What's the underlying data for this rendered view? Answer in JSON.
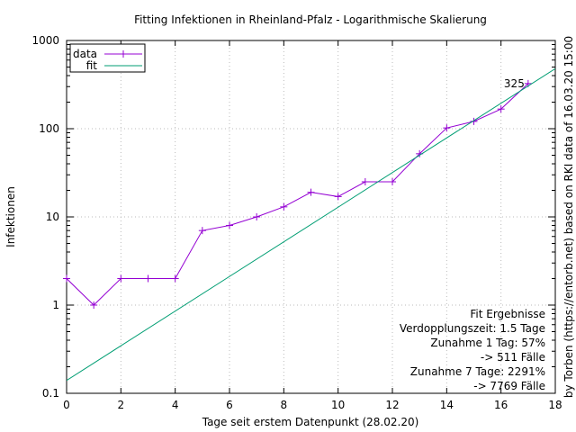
{
  "chart_data": {
    "type": "line",
    "title": "Fitting Infektionen in Rheinland-Pfalz - Logarithmische Skalierung",
    "xlabel": "Tage seit erstem Datenpunkt (28.02.20)",
    "ylabel": "Infektionen",
    "side_label": "by Torben (https://entorb.net) based on RKI data of 16.03.20 15:00",
    "xlim": [
      0,
      18
    ],
    "ylim": [
      0.1,
      1000
    ],
    "yscale": "log",
    "grid": true,
    "legend_position": "top-left",
    "x_ticks": [
      {
        "value": 0,
        "label": "0"
      },
      {
        "value": 2,
        "label": "2"
      },
      {
        "value": 4,
        "label": "4"
      },
      {
        "value": 6,
        "label": "6"
      },
      {
        "value": 8,
        "label": "8"
      },
      {
        "value": 10,
        "label": "10"
      },
      {
        "value": 12,
        "label": "12"
      },
      {
        "value": 14,
        "label": "14"
      },
      {
        "value": 16,
        "label": "16"
      },
      {
        "value": 18,
        "label": "18"
      }
    ],
    "y_ticks": [
      {
        "value": 0.1,
        "label": "0.1"
      },
      {
        "value": 1,
        "label": "1"
      },
      {
        "value": 10,
        "label": "10"
      },
      {
        "value": 100,
        "label": "100"
      },
      {
        "value": 1000,
        "label": "1000"
      }
    ],
    "series": [
      {
        "name": "data",
        "color": "#9400d3",
        "marker": "plus",
        "x": [
          0,
          1,
          2,
          3,
          4,
          5,
          6,
          7,
          8,
          9,
          10,
          11,
          12,
          13,
          14,
          15,
          16,
          17
        ],
        "y": [
          2,
          1,
          2,
          2,
          2,
          7,
          8,
          10,
          13,
          19,
          17,
          25,
          25,
          52,
          102,
          121,
          167,
          325
        ]
      },
      {
        "name": "fit",
        "color": "#009e73",
        "marker": "none",
        "x": [
          0,
          18
        ],
        "y": [
          0.14,
          480
        ]
      }
    ],
    "annotations": [
      {
        "text": "325",
        "x": 17,
        "y": 325
      }
    ],
    "fit_results": {
      "heading": "Fit Ergebnisse",
      "lines": [
        "Verdopplungszeit: 1.5 Tage",
        "Zunahme 1 Tag: 57%",
        "-> 511 Fälle",
        "Zunahme 7 Tage: 2291%",
        "-> 7769 Fälle"
      ]
    }
  }
}
